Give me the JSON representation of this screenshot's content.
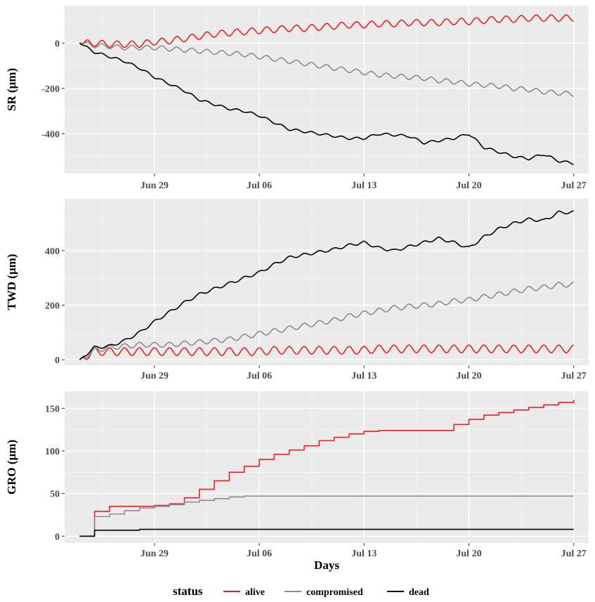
{
  "chart_data": [
    {
      "type": "line",
      "panel": "SR",
      "ylabel": "SR (µm)",
      "xlabel": "",
      "ylim": [
        -575,
        165
      ],
      "yticks": [
        -400,
        -200,
        0
      ],
      "ytick_labels": [
        "-400",
        "-200",
        "0"
      ],
      "xlim": [
        "2024-06-23",
        "2024-07-28"
      ],
      "xticks": [
        "2024-06-29",
        "2024-07-06",
        "2024-07-13",
        "2024-07-20",
        "2024-07-27"
      ],
      "xtick_labels": [
        "Jun 29",
        "Jul 06",
        "Jul 13",
        "Jul 20",
        "Jul 27"
      ],
      "grid": true,
      "series": [
        {
          "name": "alive",
          "color": "#ee1c25",
          "x": [
            "2024-06-24",
            "2024-06-25",
            "2024-06-26",
            "2024-06-27",
            "2024-06-28",
            "2024-06-29",
            "2024-06-30",
            "2024-07-01",
            "2024-07-02",
            "2024-07-03",
            "2024-07-04",
            "2024-07-05",
            "2024-07-06",
            "2024-07-07",
            "2024-07-08",
            "2024-07-09",
            "2024-07-10",
            "2024-07-11",
            "2024-07-12",
            "2024-07-13",
            "2024-07-14",
            "2024-07-15",
            "2024-07-16",
            "2024-07-17",
            "2024-07-18",
            "2024-07-19",
            "2024-07-20",
            "2024-07-21",
            "2024-07-22",
            "2024-07-23",
            "2024-07-24",
            "2024-07-25",
            "2024-07-26",
            "2024-07-27"
          ],
          "y": [
            0,
            0,
            -5,
            -5,
            -5,
            5,
            10,
            20,
            30,
            40,
            45,
            50,
            55,
            60,
            65,
            65,
            70,
            75,
            80,
            80,
            85,
            85,
            90,
            90,
            90,
            95,
            95,
            100,
            105,
            105,
            110,
            110,
            110,
            110
          ],
          "amplitude": 28
        },
        {
          "name": "compromised",
          "color": "#8c8c8c",
          "x": [
            "2024-06-24",
            "2024-06-25",
            "2024-06-26",
            "2024-06-27",
            "2024-06-28",
            "2024-06-29",
            "2024-06-30",
            "2024-07-01",
            "2024-07-02",
            "2024-07-03",
            "2024-07-04",
            "2024-07-05",
            "2024-07-06",
            "2024-07-07",
            "2024-07-08",
            "2024-07-09",
            "2024-07-10",
            "2024-07-11",
            "2024-07-12",
            "2024-07-13",
            "2024-07-14",
            "2024-07-15",
            "2024-07-16",
            "2024-07-17",
            "2024-07-18",
            "2024-07-19",
            "2024-07-20",
            "2024-07-21",
            "2024-07-22",
            "2024-07-23",
            "2024-07-24",
            "2024-07-25",
            "2024-07-26",
            "2024-07-27"
          ],
          "y": [
            0,
            -10,
            -15,
            -20,
            -20,
            -20,
            -25,
            -30,
            -35,
            -40,
            -45,
            -50,
            -60,
            -70,
            -80,
            -90,
            -100,
            -110,
            -120,
            -130,
            -140,
            -145,
            -150,
            -155,
            -165,
            -170,
            -180,
            -185,
            -190,
            -200,
            -205,
            -215,
            -220,
            -225
          ],
          "amplitude": 20
        },
        {
          "name": "dead",
          "color": "#000000",
          "x": [
            "2024-06-24",
            "2024-06-25",
            "2024-06-26",
            "2024-06-27",
            "2024-06-28",
            "2024-06-29",
            "2024-06-30",
            "2024-07-01",
            "2024-07-02",
            "2024-07-03",
            "2024-07-04",
            "2024-07-05",
            "2024-07-06",
            "2024-07-07",
            "2024-07-08",
            "2024-07-09",
            "2024-07-10",
            "2024-07-11",
            "2024-07-12",
            "2024-07-13",
            "2024-07-14",
            "2024-07-15",
            "2024-07-16",
            "2024-07-17",
            "2024-07-18",
            "2024-07-19",
            "2024-07-20",
            "2024-07-21",
            "2024-07-22",
            "2024-07-23",
            "2024-07-24",
            "2024-07-25",
            "2024-07-26",
            "2024-07-27"
          ],
          "y": [
            0,
            -40,
            -60,
            -80,
            -110,
            -150,
            -180,
            -210,
            -250,
            -270,
            -290,
            -300,
            -320,
            -350,
            -380,
            -390,
            -400,
            -410,
            -420,
            -420,
            -400,
            -405,
            -410,
            -440,
            -430,
            -420,
            -400,
            -460,
            -480,
            -500,
            -510,
            -490,
            -520,
            -530
          ],
          "amplitude": 10
        }
      ]
    },
    {
      "type": "line",
      "panel": "TWD",
      "ylabel": "TWD (µm)",
      "xlabel": "",
      "ylim": [
        -20,
        590
      ],
      "yticks": [
        0,
        200,
        400
      ],
      "ytick_labels": [
        "0",
        "200",
        "400"
      ],
      "xlim": [
        "2024-06-23",
        "2024-07-28"
      ],
      "xticks": [
        "2024-06-29",
        "2024-07-06",
        "2024-07-13",
        "2024-07-20",
        "2024-07-27"
      ],
      "xtick_labels": [
        "Jun 29",
        "Jul 06",
        "Jul 13",
        "Jul 20",
        "Jul 27"
      ],
      "grid": true,
      "series": [
        {
          "name": "alive",
          "color": "#ee1c25",
          "x": [
            "2024-06-24",
            "2024-06-25",
            "2024-06-26",
            "2024-06-27",
            "2024-06-28",
            "2024-06-29",
            "2024-06-30",
            "2024-07-01",
            "2024-07-02",
            "2024-07-03",
            "2024-07-04",
            "2024-07-05",
            "2024-07-06",
            "2024-07-07",
            "2024-07-08",
            "2024-07-09",
            "2024-07-10",
            "2024-07-11",
            "2024-07-12",
            "2024-07-13",
            "2024-07-14",
            "2024-07-15",
            "2024-07-16",
            "2024-07-17",
            "2024-07-18",
            "2024-07-19",
            "2024-07-20",
            "2024-07-21",
            "2024-07-22",
            "2024-07-23",
            "2024-07-24",
            "2024-07-25",
            "2024-07-26",
            "2024-07-27"
          ],
          "y": [
            0,
            30,
            30,
            30,
            30,
            30,
            30,
            30,
            30,
            30,
            30,
            30,
            30,
            35,
            35,
            35,
            35,
            35,
            35,
            35,
            40,
            40,
            40,
            40,
            40,
            40,
            40,
            40,
            40,
            40,
            40,
            40,
            40,
            40
          ],
          "amplitude": 28
        },
        {
          "name": "compromised",
          "color": "#8c8c8c",
          "x": [
            "2024-06-24",
            "2024-06-25",
            "2024-06-26",
            "2024-06-27",
            "2024-06-28",
            "2024-06-29",
            "2024-06-30",
            "2024-07-01",
            "2024-07-02",
            "2024-07-03",
            "2024-07-04",
            "2024-07-05",
            "2024-07-06",
            "2024-07-07",
            "2024-07-08",
            "2024-07-09",
            "2024-07-10",
            "2024-07-11",
            "2024-07-12",
            "2024-07-13",
            "2024-07-14",
            "2024-07-15",
            "2024-07-16",
            "2024-07-17",
            "2024-07-18",
            "2024-07-19",
            "2024-07-20",
            "2024-07-21",
            "2024-07-22",
            "2024-07-23",
            "2024-07-24",
            "2024-07-25",
            "2024-07-26",
            "2024-07-27"
          ],
          "y": [
            0,
            35,
            45,
            50,
            55,
            55,
            55,
            60,
            65,
            70,
            75,
            85,
            95,
            105,
            115,
            125,
            135,
            145,
            160,
            170,
            180,
            190,
            195,
            200,
            205,
            215,
            220,
            230,
            240,
            250,
            260,
            265,
            275,
            275
          ],
          "amplitude": 18
        },
        {
          "name": "dead",
          "color": "#000000",
          "x": [
            "2024-06-24",
            "2024-06-25",
            "2024-06-26",
            "2024-06-27",
            "2024-06-28",
            "2024-06-29",
            "2024-06-30",
            "2024-07-01",
            "2024-07-02",
            "2024-07-03",
            "2024-07-04",
            "2024-07-05",
            "2024-07-06",
            "2024-07-07",
            "2024-07-08",
            "2024-07-09",
            "2024-07-10",
            "2024-07-11",
            "2024-07-12",
            "2024-07-13",
            "2024-07-14",
            "2024-07-15",
            "2024-07-16",
            "2024-07-17",
            "2024-07-18",
            "2024-07-19",
            "2024-07-20",
            "2024-07-21",
            "2024-07-22",
            "2024-07-23",
            "2024-07-24",
            "2024-07-25",
            "2024-07-26",
            "2024-07-27"
          ],
          "y": [
            0,
            45,
            50,
            70,
            100,
            140,
            175,
            210,
            240,
            260,
            280,
            300,
            320,
            350,
            375,
            385,
            395,
            405,
            420,
            430,
            410,
            400,
            415,
            430,
            445,
            430,
            410,
            450,
            480,
            500,
            515,
            510,
            540,
            540
          ],
          "amplitude": 10
        }
      ]
    },
    {
      "type": "line",
      "panel": "GRO",
      "ylabel": "GRO (µm)",
      "xlabel": "Days",
      "ylim": [
        -8,
        170
      ],
      "yticks": [
        0,
        50,
        100,
        150
      ],
      "ytick_labels": [
        "0",
        "50",
        "100",
        "150"
      ],
      "xlim": [
        "2024-06-23",
        "2024-07-28"
      ],
      "xticks": [
        "2024-06-29",
        "2024-07-06",
        "2024-07-13",
        "2024-07-20",
        "2024-07-27"
      ],
      "xtick_labels": [
        "Jun 29",
        "Jul 06",
        "Jul 13",
        "Jul 20",
        "Jul 27"
      ],
      "grid": true,
      "series": [
        {
          "name": "alive",
          "color": "#ee1c25",
          "x": [
            "2024-06-24",
            "2024-06-25",
            "2024-06-26",
            "2024-06-27",
            "2024-06-28",
            "2024-06-29",
            "2024-06-30",
            "2024-07-01",
            "2024-07-02",
            "2024-07-03",
            "2024-07-04",
            "2024-07-05",
            "2024-07-06",
            "2024-07-07",
            "2024-07-08",
            "2024-07-09",
            "2024-07-10",
            "2024-07-11",
            "2024-07-12",
            "2024-07-13",
            "2024-07-14",
            "2024-07-15",
            "2024-07-16",
            "2024-07-17",
            "2024-07-18",
            "2024-07-19",
            "2024-07-20",
            "2024-07-21",
            "2024-07-22",
            "2024-07-23",
            "2024-07-24",
            "2024-07-25",
            "2024-07-26",
            "2024-07-27"
          ],
          "y": [
            0,
            29,
            35,
            35,
            35,
            36,
            38,
            45,
            55,
            65,
            75,
            82,
            90,
            96,
            101,
            106,
            112,
            116,
            120,
            123,
            124,
            124,
            124,
            124,
            124,
            131,
            137,
            142,
            145,
            148,
            151,
            154,
            157,
            160
          ],
          "amplitude": 0
        },
        {
          "name": "compromised",
          "color": "#8c8c8c",
          "x": [
            "2024-06-24",
            "2024-06-25",
            "2024-06-26",
            "2024-06-27",
            "2024-06-28",
            "2024-06-29",
            "2024-06-30",
            "2024-07-01",
            "2024-07-02",
            "2024-07-03",
            "2024-07-04",
            "2024-07-05",
            "2024-07-06",
            "2024-07-07",
            "2024-07-08",
            "2024-07-09",
            "2024-07-10",
            "2024-07-11",
            "2024-07-12",
            "2024-07-13",
            "2024-07-14",
            "2024-07-15",
            "2024-07-16",
            "2024-07-17",
            "2024-07-18",
            "2024-07-19",
            "2024-07-20",
            "2024-07-21",
            "2024-07-22",
            "2024-07-23",
            "2024-07-24",
            "2024-07-25",
            "2024-07-26",
            "2024-07-27"
          ],
          "y": [
            0,
            23,
            26,
            30,
            33,
            35,
            37,
            40,
            42,
            44,
            46,
            47,
            47,
            47,
            47,
            47,
            47,
            47,
            47,
            47,
            47,
            47,
            47,
            47,
            47,
            47,
            47,
            47,
            47,
            47,
            47,
            47,
            47,
            47
          ],
          "amplitude": 0
        },
        {
          "name": "dead",
          "color": "#000000",
          "x": [
            "2024-06-24",
            "2024-06-25",
            "2024-06-26",
            "2024-06-27",
            "2024-06-28",
            "2024-06-29",
            "2024-06-30",
            "2024-07-01",
            "2024-07-02",
            "2024-07-03",
            "2024-07-04",
            "2024-07-05",
            "2024-07-06",
            "2024-07-07",
            "2024-07-08",
            "2024-07-09",
            "2024-07-10",
            "2024-07-11",
            "2024-07-12",
            "2024-07-13",
            "2024-07-14",
            "2024-07-15",
            "2024-07-16",
            "2024-07-17",
            "2024-07-18",
            "2024-07-19",
            "2024-07-20",
            "2024-07-21",
            "2024-07-22",
            "2024-07-23",
            "2024-07-24",
            "2024-07-25",
            "2024-07-26",
            "2024-07-27"
          ],
          "y": [
            0,
            7,
            7,
            7,
            8,
            8,
            8,
            8,
            8,
            8,
            8,
            8,
            8,
            8,
            8,
            8,
            8,
            8,
            8,
            8,
            8,
            8,
            8,
            8,
            8,
            8,
            8,
            8,
            8,
            8,
            8,
            8,
            8,
            8
          ],
          "amplitude": 0
        }
      ]
    }
  ],
  "legend": {
    "title": "status",
    "position": "bottom",
    "items": [
      {
        "label": "alive",
        "color": "#ee1c25"
      },
      {
        "label": "compromised",
        "color": "#8c8c8c"
      },
      {
        "label": "dead",
        "color": "#000000"
      }
    ]
  },
  "style": {
    "panel_background": "#ebebeb",
    "grid_major": "#ffffff",
    "grid_minor": "#f5f5f5",
    "tick_text": "#4d4d4d"
  }
}
